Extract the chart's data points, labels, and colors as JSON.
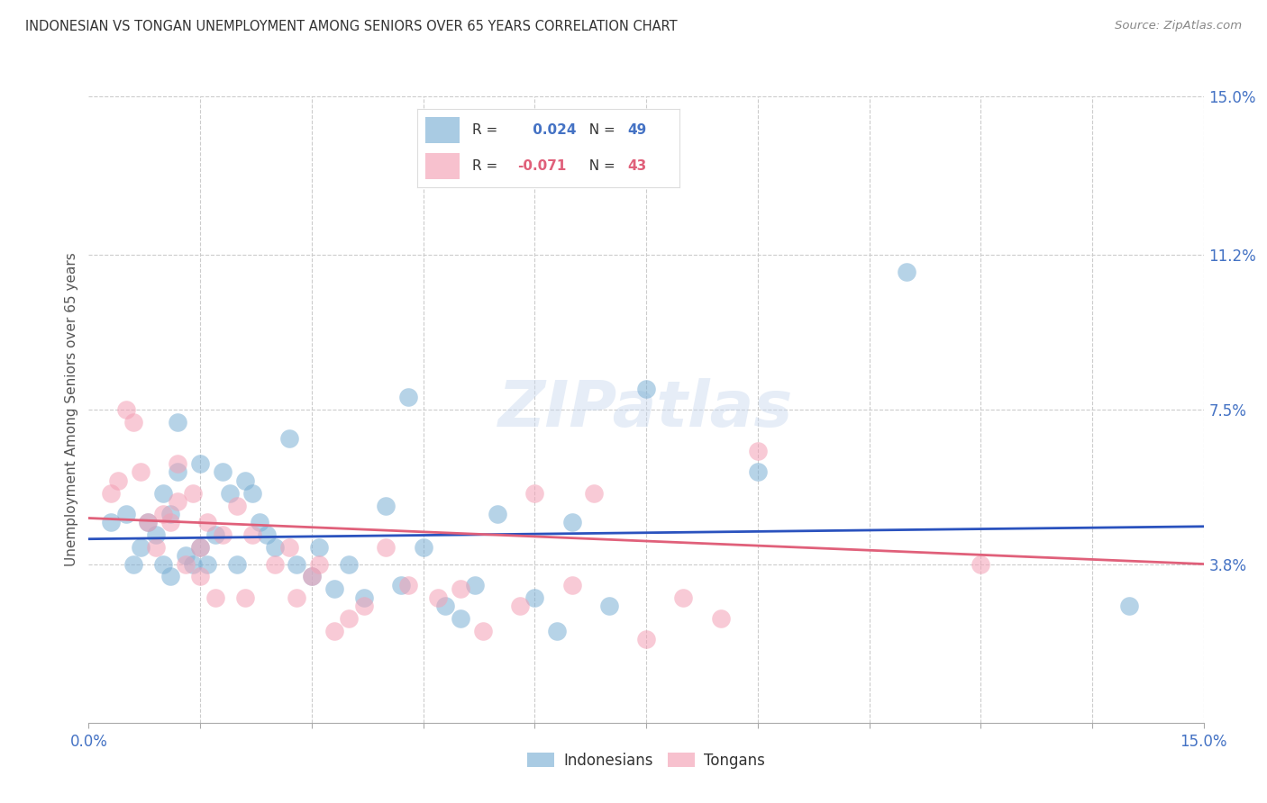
{
  "title": "INDONESIAN VS TONGAN UNEMPLOYMENT AMONG SENIORS OVER 65 YEARS CORRELATION CHART",
  "source": "Source: ZipAtlas.com",
  "ylabel": "Unemployment Among Seniors over 65 years",
  "xlim": [
    0,
    0.15
  ],
  "ylim": [
    0,
    0.15
  ],
  "right_yticks": [
    0.038,
    0.075,
    0.112,
    0.15
  ],
  "right_yticklabels": [
    "3.8%",
    "7.5%",
    "11.2%",
    "15.0%"
  ],
  "indonesian_color": "#7bafd4",
  "tongan_color": "#f4a0b5",
  "indonesian_line_color": "#2a52be",
  "tongan_line_color": "#e0607a",
  "indonesian_R": 0.024,
  "indonesian_N": 49,
  "tongan_R": -0.071,
  "tongan_N": 43,
  "watermark": "ZIPatlas",
  "ind_line_y0": 0.044,
  "ind_line_y1": 0.047,
  "ton_line_y0": 0.049,
  "ton_line_y1": 0.038,
  "indonesian_x": [
    0.003,
    0.005,
    0.006,
    0.007,
    0.008,
    0.009,
    0.01,
    0.01,
    0.011,
    0.011,
    0.012,
    0.012,
    0.013,
    0.014,
    0.015,
    0.015,
    0.016,
    0.017,
    0.018,
    0.019,
    0.02,
    0.021,
    0.022,
    0.023,
    0.024,
    0.025,
    0.027,
    0.028,
    0.03,
    0.031,
    0.033,
    0.035,
    0.037,
    0.04,
    0.042,
    0.043,
    0.045,
    0.048,
    0.05,
    0.052,
    0.055,
    0.06,
    0.063,
    0.065,
    0.07,
    0.075,
    0.09,
    0.11,
    0.14
  ],
  "indonesian_y": [
    0.048,
    0.05,
    0.038,
    0.042,
    0.048,
    0.045,
    0.055,
    0.038,
    0.05,
    0.035,
    0.072,
    0.06,
    0.04,
    0.038,
    0.062,
    0.042,
    0.038,
    0.045,
    0.06,
    0.055,
    0.038,
    0.058,
    0.055,
    0.048,
    0.045,
    0.042,
    0.068,
    0.038,
    0.035,
    0.042,
    0.032,
    0.038,
    0.03,
    0.052,
    0.033,
    0.078,
    0.042,
    0.028,
    0.025,
    0.033,
    0.05,
    0.03,
    0.022,
    0.048,
    0.028,
    0.08,
    0.06,
    0.108,
    0.028
  ],
  "tongan_x": [
    0.003,
    0.004,
    0.005,
    0.006,
    0.007,
    0.008,
    0.009,
    0.01,
    0.011,
    0.012,
    0.012,
    0.013,
    0.014,
    0.015,
    0.015,
    0.016,
    0.017,
    0.018,
    0.02,
    0.021,
    0.022,
    0.025,
    0.027,
    0.028,
    0.03,
    0.031,
    0.033,
    0.035,
    0.037,
    0.04,
    0.043,
    0.047,
    0.05,
    0.053,
    0.058,
    0.06,
    0.065,
    0.068,
    0.075,
    0.08,
    0.085,
    0.09,
    0.12
  ],
  "tongan_y": [
    0.055,
    0.058,
    0.075,
    0.072,
    0.06,
    0.048,
    0.042,
    0.05,
    0.048,
    0.053,
    0.062,
    0.038,
    0.055,
    0.042,
    0.035,
    0.048,
    0.03,
    0.045,
    0.052,
    0.03,
    0.045,
    0.038,
    0.042,
    0.03,
    0.035,
    0.038,
    0.022,
    0.025,
    0.028,
    0.042,
    0.033,
    0.03,
    0.032,
    0.022,
    0.028,
    0.055,
    0.033,
    0.055,
    0.02,
    0.03,
    0.025,
    0.065,
    0.038
  ]
}
